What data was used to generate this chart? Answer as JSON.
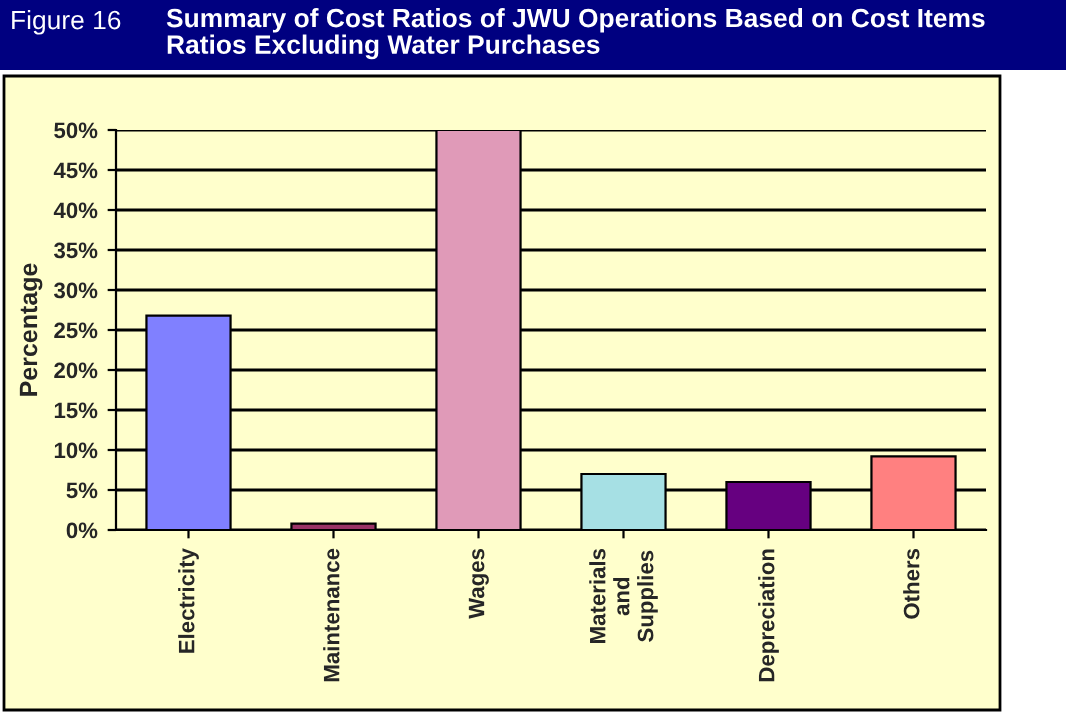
{
  "chart_data": {
    "type": "bar",
    "title": "Summary of Cost Ratios of JWU Operations Based on Cost Items Ratios Excluding Water Purchases",
    "annotations": [
      "Figure 16"
    ],
    "ylabel": "Percentage",
    "categories": [
      "Electricity",
      "Maintenance",
      "Wages",
      "Materials and Supplies",
      "Depreciation",
      "Others"
    ],
    "values": [
      26.8,
      0.8,
      50,
      7,
      6,
      9.2
    ],
    "colors": [
      "#8080ff",
      "#993366",
      "#e09ab8",
      "#a6e0e4",
      "#660080",
      "#ff8080"
    ],
    "ylim": [
      0,
      50
    ],
    "yticks": [
      {
        "value": 0,
        "label": "0%"
      },
      {
        "value": 5,
        "label": "5%"
      },
      {
        "value": 10,
        "label": "10%"
      },
      {
        "value": 15,
        "label": "15%"
      },
      {
        "value": 20,
        "label": "20%"
      },
      {
        "value": 25,
        "label": "25%"
      },
      {
        "value": 30,
        "label": "30%"
      },
      {
        "value": 35,
        "label": "35%"
      },
      {
        "value": 40,
        "label": "40%"
      },
      {
        "value": 45,
        "label": "45%"
      },
      {
        "value": 50,
        "label": "50%"
      }
    ],
    "grid": "y",
    "legend": false
  }
}
